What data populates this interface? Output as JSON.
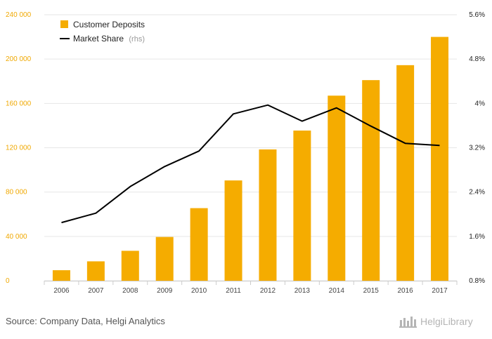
{
  "chart_data": {
    "type": "bar",
    "categories": [
      "2006",
      "2007",
      "2008",
      "2009",
      "2010",
      "2011",
      "2012",
      "2013",
      "2014",
      "2015",
      "2016",
      "2017"
    ],
    "series": [
      {
        "name": "Customer Deposits",
        "type": "bar",
        "axis": "left",
        "values": [
          9500,
          17500,
          27000,
          39500,
          65500,
          90500,
          118500,
          135500,
          167000,
          181000,
          194500,
          220000
        ]
      },
      {
        "name": "Market Share",
        "name_suffix": "(rhs)",
        "type": "line",
        "axis": "right",
        "values": [
          1.85,
          2.02,
          2.5,
          2.86,
          3.14,
          3.81,
          3.97,
          3.68,
          3.92,
          3.59,
          3.28,
          3.24
        ]
      }
    ],
    "y_left": {
      "min": 0,
      "max": 240000,
      "ticks": [
        "0",
        "40 000",
        "80 000",
        "120 000",
        "160 000",
        "200 000",
        "240 000"
      ]
    },
    "y_right": {
      "min": 0.8,
      "max": 5.6,
      "ticks": [
        "0.8%",
        "1.6%",
        "2.4%",
        "3.2%",
        "4%",
        "4.8%",
        "5.6%"
      ]
    },
    "grid": true,
    "legend_position": "top-left",
    "colors": {
      "bar": "#f5ac00",
      "line": "#000000",
      "grid": "#e6e6e6"
    }
  },
  "footer": {
    "source": "Source: Company Data, Helgi Analytics",
    "brand": "HelgiLibrary"
  }
}
